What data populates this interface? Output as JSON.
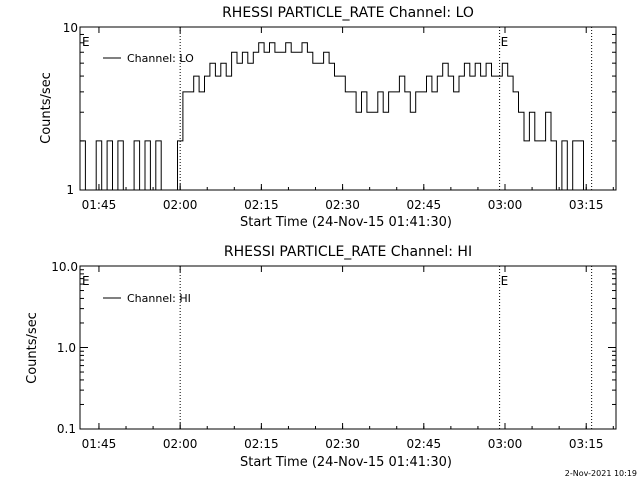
{
  "footer": {
    "timestamp": "2-Nov-2021 10:19"
  },
  "colors": {
    "line": "#000000",
    "background": "#ffffff"
  },
  "chart_data": [
    {
      "type": "line",
      "title": "RHESSI PARTICLE_RATE Channel: LO",
      "xlabel": "Start Time (24-Nov-15 01:41:30)",
      "ylabel": "Counts/sec",
      "yscale": "log",
      "ylim": [
        1,
        10
      ],
      "y_ticks": [
        "1",
        "10"
      ],
      "xlim": [
        "01:41:30",
        "03:20:30"
      ],
      "x_ticks": [
        "01:45",
        "02:00",
        "02:15",
        "02:30",
        "02:45",
        "03:00",
        "03:15"
      ],
      "legend": {
        "position": "top-left",
        "entries": [
          "Channel: LO"
        ]
      },
      "vlines": [
        {
          "x": "02:00:00",
          "label": ""
        },
        {
          "x": "02:59:00",
          "label": "E"
        },
        {
          "x": "03:16:00",
          "label": ""
        }
      ],
      "corner_label": "E",
      "series": [
        {
          "name": "Channel: LO",
          "x": [
            "01:42:00",
            "01:43:00",
            "01:44:00",
            "01:45:00",
            "01:46:00",
            "01:47:00",
            "01:48:00",
            "01:49:00",
            "01:50:00",
            "01:51:00",
            "01:52:00",
            "01:53:00",
            "01:54:00",
            "01:55:00",
            "01:56:00",
            "01:57:00",
            "01:58:00",
            "01:59:00",
            "02:00:00",
            "02:01:00",
            "02:02:00",
            "02:03:00",
            "02:04:00",
            "02:05:00",
            "02:06:00",
            "02:07:00",
            "02:08:00",
            "02:09:00",
            "02:10:00",
            "02:11:00",
            "02:12:00",
            "02:13:00",
            "02:14:00",
            "02:15:00",
            "02:16:00",
            "02:17:00",
            "02:18:00",
            "02:19:00",
            "02:20:00",
            "02:21:00",
            "02:22:00",
            "02:23:00",
            "02:24:00",
            "02:25:00",
            "02:26:00",
            "02:27:00",
            "02:28:00",
            "02:29:00",
            "02:30:00",
            "02:31:00",
            "02:32:00",
            "02:33:00",
            "02:34:00",
            "02:35:00",
            "02:36:00",
            "02:37:00",
            "02:38:00",
            "02:39:00",
            "02:40:00",
            "02:41:00",
            "02:42:00",
            "02:43:00",
            "02:44:00",
            "02:45:00",
            "02:46:00",
            "02:47:00",
            "02:48:00",
            "02:49:00",
            "02:50:00",
            "02:51:00",
            "02:52:00",
            "02:53:00",
            "02:54:00",
            "02:55:00",
            "02:56:00",
            "02:57:00",
            "02:58:00",
            "02:59:00",
            "03:00:00",
            "03:01:00",
            "03:02:00",
            "03:03:00",
            "03:04:00",
            "03:05:00",
            "03:06:00",
            "03:07:00",
            "03:08:00",
            "03:09:00",
            "03:10:00",
            "03:11:00",
            "03:12:00",
            "03:13:00",
            "03:14:00",
            "03:15:00",
            "03:16:00"
          ],
          "values": [
            2,
            1,
            1,
            2,
            1,
            2,
            1,
            2,
            1,
            1,
            2,
            1,
            2,
            1,
            2,
            1,
            1,
            1,
            2,
            4,
            4,
            5,
            4,
            5,
            6,
            5,
            6,
            5,
            7,
            6,
            7,
            6,
            7,
            8,
            7,
            8,
            7,
            7,
            8,
            7,
            7,
            8,
            7,
            6,
            6,
            7,
            6,
            5,
            5,
            4,
            4,
            3,
            4,
            3,
            3,
            4,
            3,
            4,
            4,
            5,
            4,
            3,
            4,
            4,
            5,
            4,
            5,
            6,
            5,
            4,
            5,
            6,
            5,
            6,
            5,
            6,
            5,
            5,
            6,
            5,
            4,
            3,
            2,
            3,
            2,
            2,
            3,
            2,
            1,
            2,
            1,
            2,
            2,
            1,
            1
          ]
        }
      ]
    },
    {
      "type": "line",
      "title": "RHESSI PARTICLE_RATE Channel: HI",
      "xlabel": "Start Time (24-Nov-15 01:41:30)",
      "ylabel": "Counts/sec",
      "yscale": "log",
      "ylim": [
        0.1,
        10
      ],
      "y_ticks": [
        "0.1",
        "1.0",
        "10.0"
      ],
      "xlim": [
        "01:41:30",
        "03:20:30"
      ],
      "x_ticks": [
        "01:45",
        "02:00",
        "02:15",
        "02:30",
        "02:45",
        "03:00",
        "03:15"
      ],
      "legend": {
        "position": "top-left",
        "entries": [
          "Channel: HI"
        ]
      },
      "vlines": [
        {
          "x": "02:00:00",
          "label": ""
        },
        {
          "x": "02:59:00",
          "label": "E"
        },
        {
          "x": "03:16:00",
          "label": ""
        }
      ],
      "corner_label": "E",
      "series": [
        {
          "name": "Channel: HI",
          "x": [],
          "values": []
        }
      ]
    }
  ]
}
